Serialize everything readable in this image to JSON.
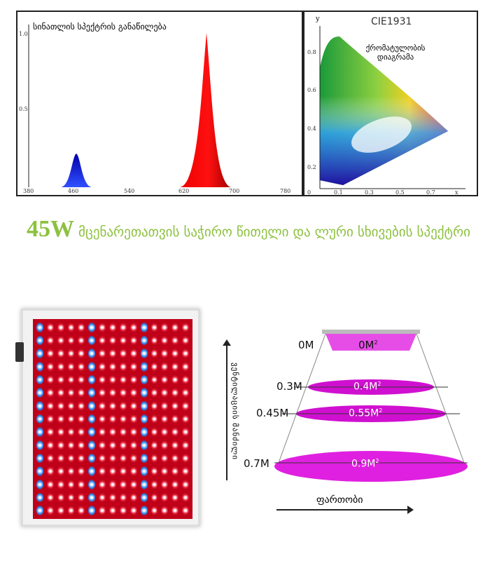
{
  "spectrum": {
    "title": "სინათლის სპექტრის განაწილება",
    "y_ticks": [
      "1.0",
      "0.5"
    ],
    "x_ticks": [
      "380",
      "460",
      "540",
      "620",
      "700",
      "780"
    ],
    "peaks": [
      {
        "wavelength": 455,
        "relative": 0.22,
        "color": "#1a1ad0"
      },
      {
        "wavelength": 660,
        "relative": 1.0,
        "color": "#e00000"
      }
    ]
  },
  "cie": {
    "title": "CIE1931",
    "label": "ქრომატულობის დიაგრამა",
    "y_axis": "y",
    "x_axis": "x",
    "y_ticks": [
      "0.8",
      "0.6",
      "0.4",
      "0.2"
    ],
    "x_ticks": [
      "0",
      "0.1",
      "0.3",
      "0.5",
      "0.7"
    ]
  },
  "headline": {
    "power": "45W",
    "text": "მცენარეთათვის საჭირო წითელი და ლური სხივების სპექტრი"
  },
  "coverage": {
    "y_axis": "ვენტილაციის მანძილი",
    "x_axis": "ფართობი",
    "levels": [
      {
        "height": "0M",
        "area": "0M",
        "sup": "2"
      },
      {
        "height": "0.3M",
        "area": "0.4M",
        "sup": "2"
      },
      {
        "height": "0.45M",
        "area": "0.55M",
        "sup": "2"
      },
      {
        "height": "0.7M",
        "area": "0.9M",
        "sup": "2"
      }
    ]
  },
  "colors": {
    "accent": "#8cc13f",
    "beam": "#e020e0",
    "red_led": "#e8203a",
    "blue_led": "#3090ff"
  }
}
